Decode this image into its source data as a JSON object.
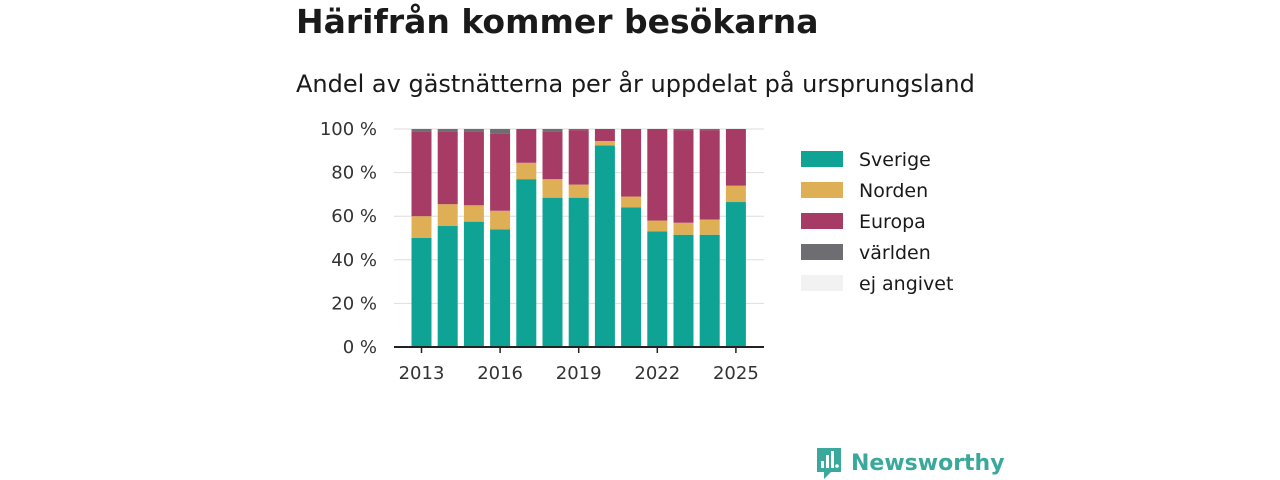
{
  "chart_data": {
    "type": "bar",
    "stacked": true,
    "title": "Härifrån kommer besökarna",
    "subtitle": "Andel av gästnätterna per år uppdelat på ursprungsland",
    "x": [
      2013,
      2014,
      2015,
      2016,
      2017,
      2018,
      2019,
      2020,
      2021,
      2022,
      2023,
      2024,
      2025
    ],
    "x_ticks": [
      "2013",
      "2016",
      "2019",
      "2022",
      "2025"
    ],
    "y_ticks": [
      "0 %",
      "20 %",
      "40 %",
      "60 %",
      "80 %",
      "100 %"
    ],
    "ylim": [
      0,
      100
    ],
    "grid": true,
    "legend_position": "right",
    "series": [
      {
        "name": "Sverige",
        "color": "#0fa396",
        "values": [
          50,
          55.5,
          57.5,
          54,
          77,
          68.5,
          68.5,
          92.5,
          64,
          53,
          51.5,
          51.5,
          66.5
        ]
      },
      {
        "name": "Norden",
        "color": "#dfaf55",
        "values": [
          10,
          10,
          7.5,
          8.5,
          7.5,
          8.5,
          6,
          2,
          5,
          5,
          5.5,
          7,
          7.5
        ]
      },
      {
        "name": "Europa",
        "color": "#a63c65",
        "values": [
          39,
          33.5,
          34,
          35.5,
          15.5,
          22,
          25,
          5.5,
          31,
          42,
          42.5,
          41,
          26
        ]
      },
      {
        "name": "världen",
        "color": "#6d6d72",
        "values": [
          1,
          1,
          1,
          2,
          0,
          1,
          0.5,
          0,
          0,
          0,
          0.5,
          0.5,
          0
        ]
      },
      {
        "name": "ej angivet",
        "color": "#f2f2f2",
        "values": [
          0,
          0,
          0,
          0,
          0,
          0,
          0,
          0,
          0,
          0,
          0,
          0,
          0
        ]
      }
    ]
  },
  "logo": {
    "text": "Newsworthy",
    "icon": "newsworthy-logo-icon",
    "color": "#3aa99b"
  }
}
